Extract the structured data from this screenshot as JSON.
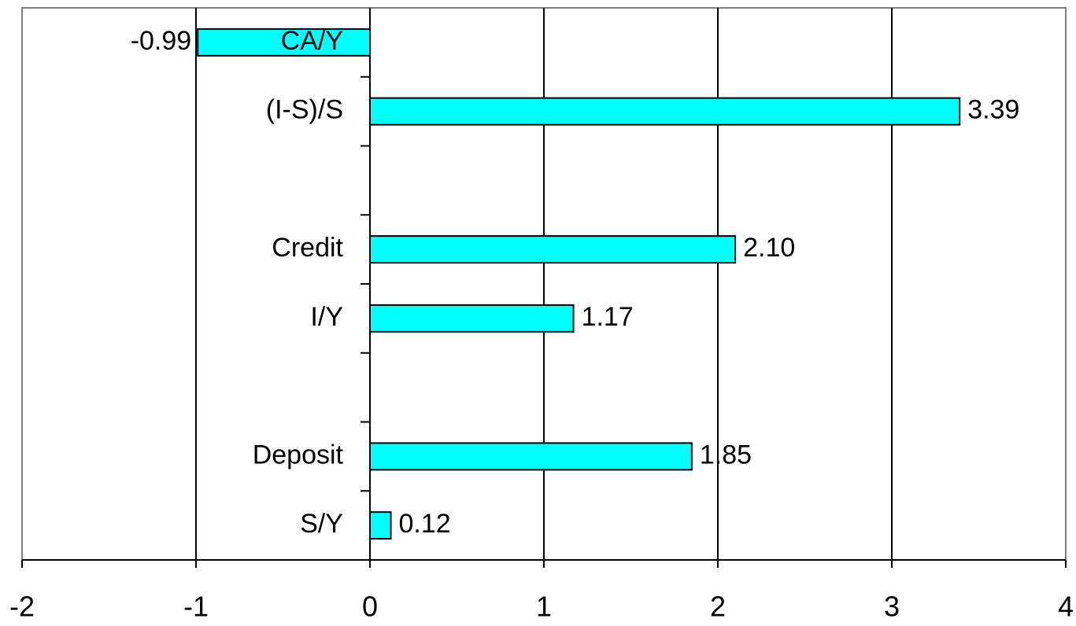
{
  "chart_data": {
    "type": "hbar",
    "categories": [
      "CA/Y",
      "(I-S)/S",
      null,
      "Credit",
      "I/Y",
      null,
      "Deposit",
      "S/Y"
    ],
    "values": [
      -0.99,
      3.39,
      null,
      2.1,
      1.17,
      null,
      1.85,
      0.12
    ],
    "value_labels": [
      "-0.99",
      "3.39",
      null,
      "2.10",
      "1.17",
      null,
      "1.85",
      "0.12"
    ],
    "color": "#00ffff",
    "xlim": [
      -2,
      4
    ],
    "xticks": [
      -2,
      -1,
      0,
      1,
      2,
      3,
      4
    ],
    "grid": true
  }
}
